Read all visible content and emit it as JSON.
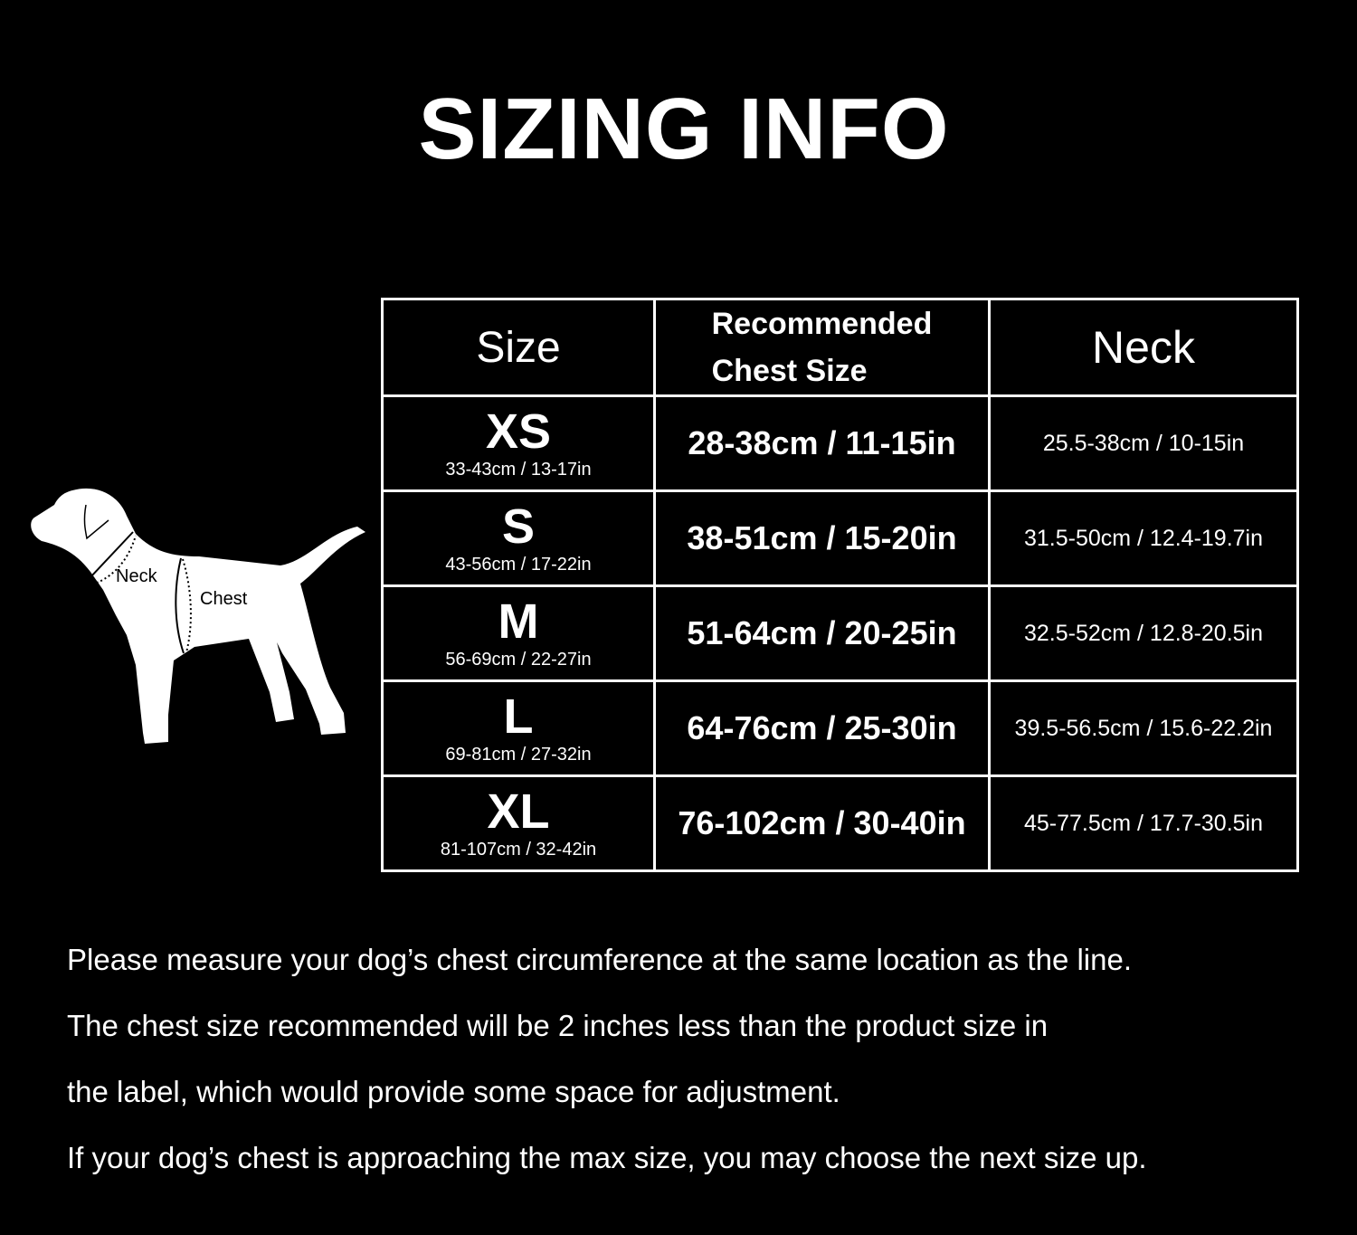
{
  "title": "SIZING INFO",
  "diagram": {
    "neck_label": "Neck",
    "chest_label": "Chest"
  },
  "table": {
    "headers": {
      "size": "Size",
      "chest_line1": "Recommended",
      "chest_line2": "Chest Size",
      "neck": "Neck"
    },
    "rows": [
      {
        "size": "XS",
        "range": "33-43cm / 13-17in",
        "chest": "28-38cm / 11-15in",
        "neck": "25.5-38cm / 10-15in"
      },
      {
        "size": "S",
        "range": "43-56cm / 17-22in",
        "chest": "38-51cm / 15-20in",
        "neck": "31.5-50cm / 12.4-19.7in"
      },
      {
        "size": "M",
        "range": "56-69cm / 22-27in",
        "chest": "51-64cm / 20-25in",
        "neck": "32.5-52cm / 12.8-20.5in"
      },
      {
        "size": "L",
        "range": "69-81cm / 27-32in",
        "chest": "64-76cm / 25-30in",
        "neck": "39.5-56.5cm / 15.6-22.2in"
      },
      {
        "size": "XL",
        "range": "81-107cm / 32-42in",
        "chest": "76-102cm / 30-40in",
        "neck": "45-77.5cm / 17.7-30.5in"
      }
    ]
  },
  "notes": [
    "Please measure your dog’s chest circumference at the same location as the line.",
    "The chest size recommended will be 2 inches less than the product size in",
    "the label, which would provide some space for adjustment.",
    "If your dog’s chest is approaching the max size, you may choose the next size up."
  ]
}
